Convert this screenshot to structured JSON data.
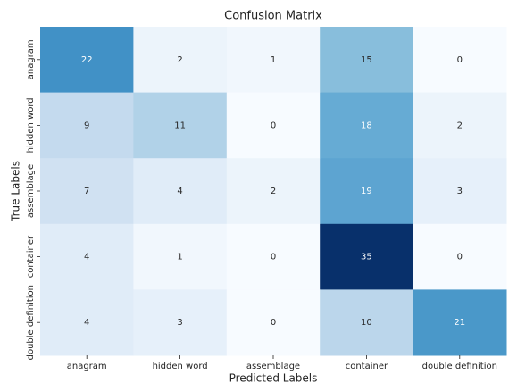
{
  "chart_data": {
    "type": "heatmap",
    "title": "Confusion Matrix",
    "xlabel": "Predicted Labels",
    "ylabel": "True Labels",
    "x_categories": [
      "anagram",
      "hidden word",
      "assemblage",
      "container",
      "double definition"
    ],
    "y_categories": [
      "anagram",
      "hidden word",
      "assemblage",
      "container",
      "double definition"
    ],
    "values": [
      [
        22,
        2,
        1,
        15,
        0
      ],
      [
        9,
        11,
        0,
        18,
        2
      ],
      [
        7,
        4,
        2,
        19,
        3
      ],
      [
        4,
        1,
        0,
        35,
        0
      ],
      [
        4,
        3,
        0,
        10,
        21
      ]
    ],
    "colormap": "Blues"
  }
}
